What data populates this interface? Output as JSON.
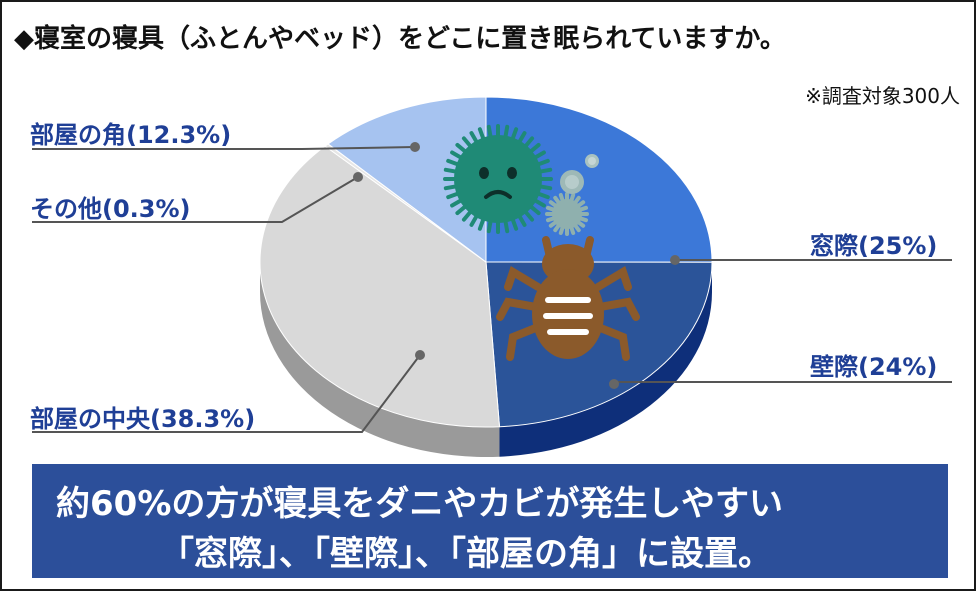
{
  "header": {
    "title": "◆寝室の寝具（ふとんやベッド）をどこに置き眠られていますか。",
    "note": "※調査対象300人"
  },
  "chart_data": {
    "type": "pie",
    "title": "寝室の寝具（ふとんやベッド）をどこに置き眠られていますか。",
    "unit": "%",
    "slices": [
      {
        "label": "窓際",
        "value": 25,
        "display": "窓際(25%)",
        "color": "#3c78d8"
      },
      {
        "label": "壁際",
        "value": 24,
        "display": "壁際(24%)",
        "color": "#2b5499"
      },
      {
        "label": "部屋の中央",
        "value": 38.3,
        "display": "部屋の中央(38.3%)",
        "color": "#d9d9d9"
      },
      {
        "label": "その他",
        "value": 0.3,
        "display": "その他(0.3%)",
        "color": "#e6e6e6"
      },
      {
        "label": "部屋の角",
        "value": 12.3,
        "display": "部屋の角(12.3%)",
        "color": "#a6c3f0"
      }
    ],
    "legend": "none"
  },
  "banner": {
    "line1": "約60%の方が寝具をダニやカビが発生しやすい",
    "line2": "「窓際」、「壁際」、「部屋の角」に設置。"
  },
  "icons": [
    "mold-spore-icon",
    "small-spore-icon",
    "tiny-spore-icon",
    "dust-mite-icon"
  ]
}
